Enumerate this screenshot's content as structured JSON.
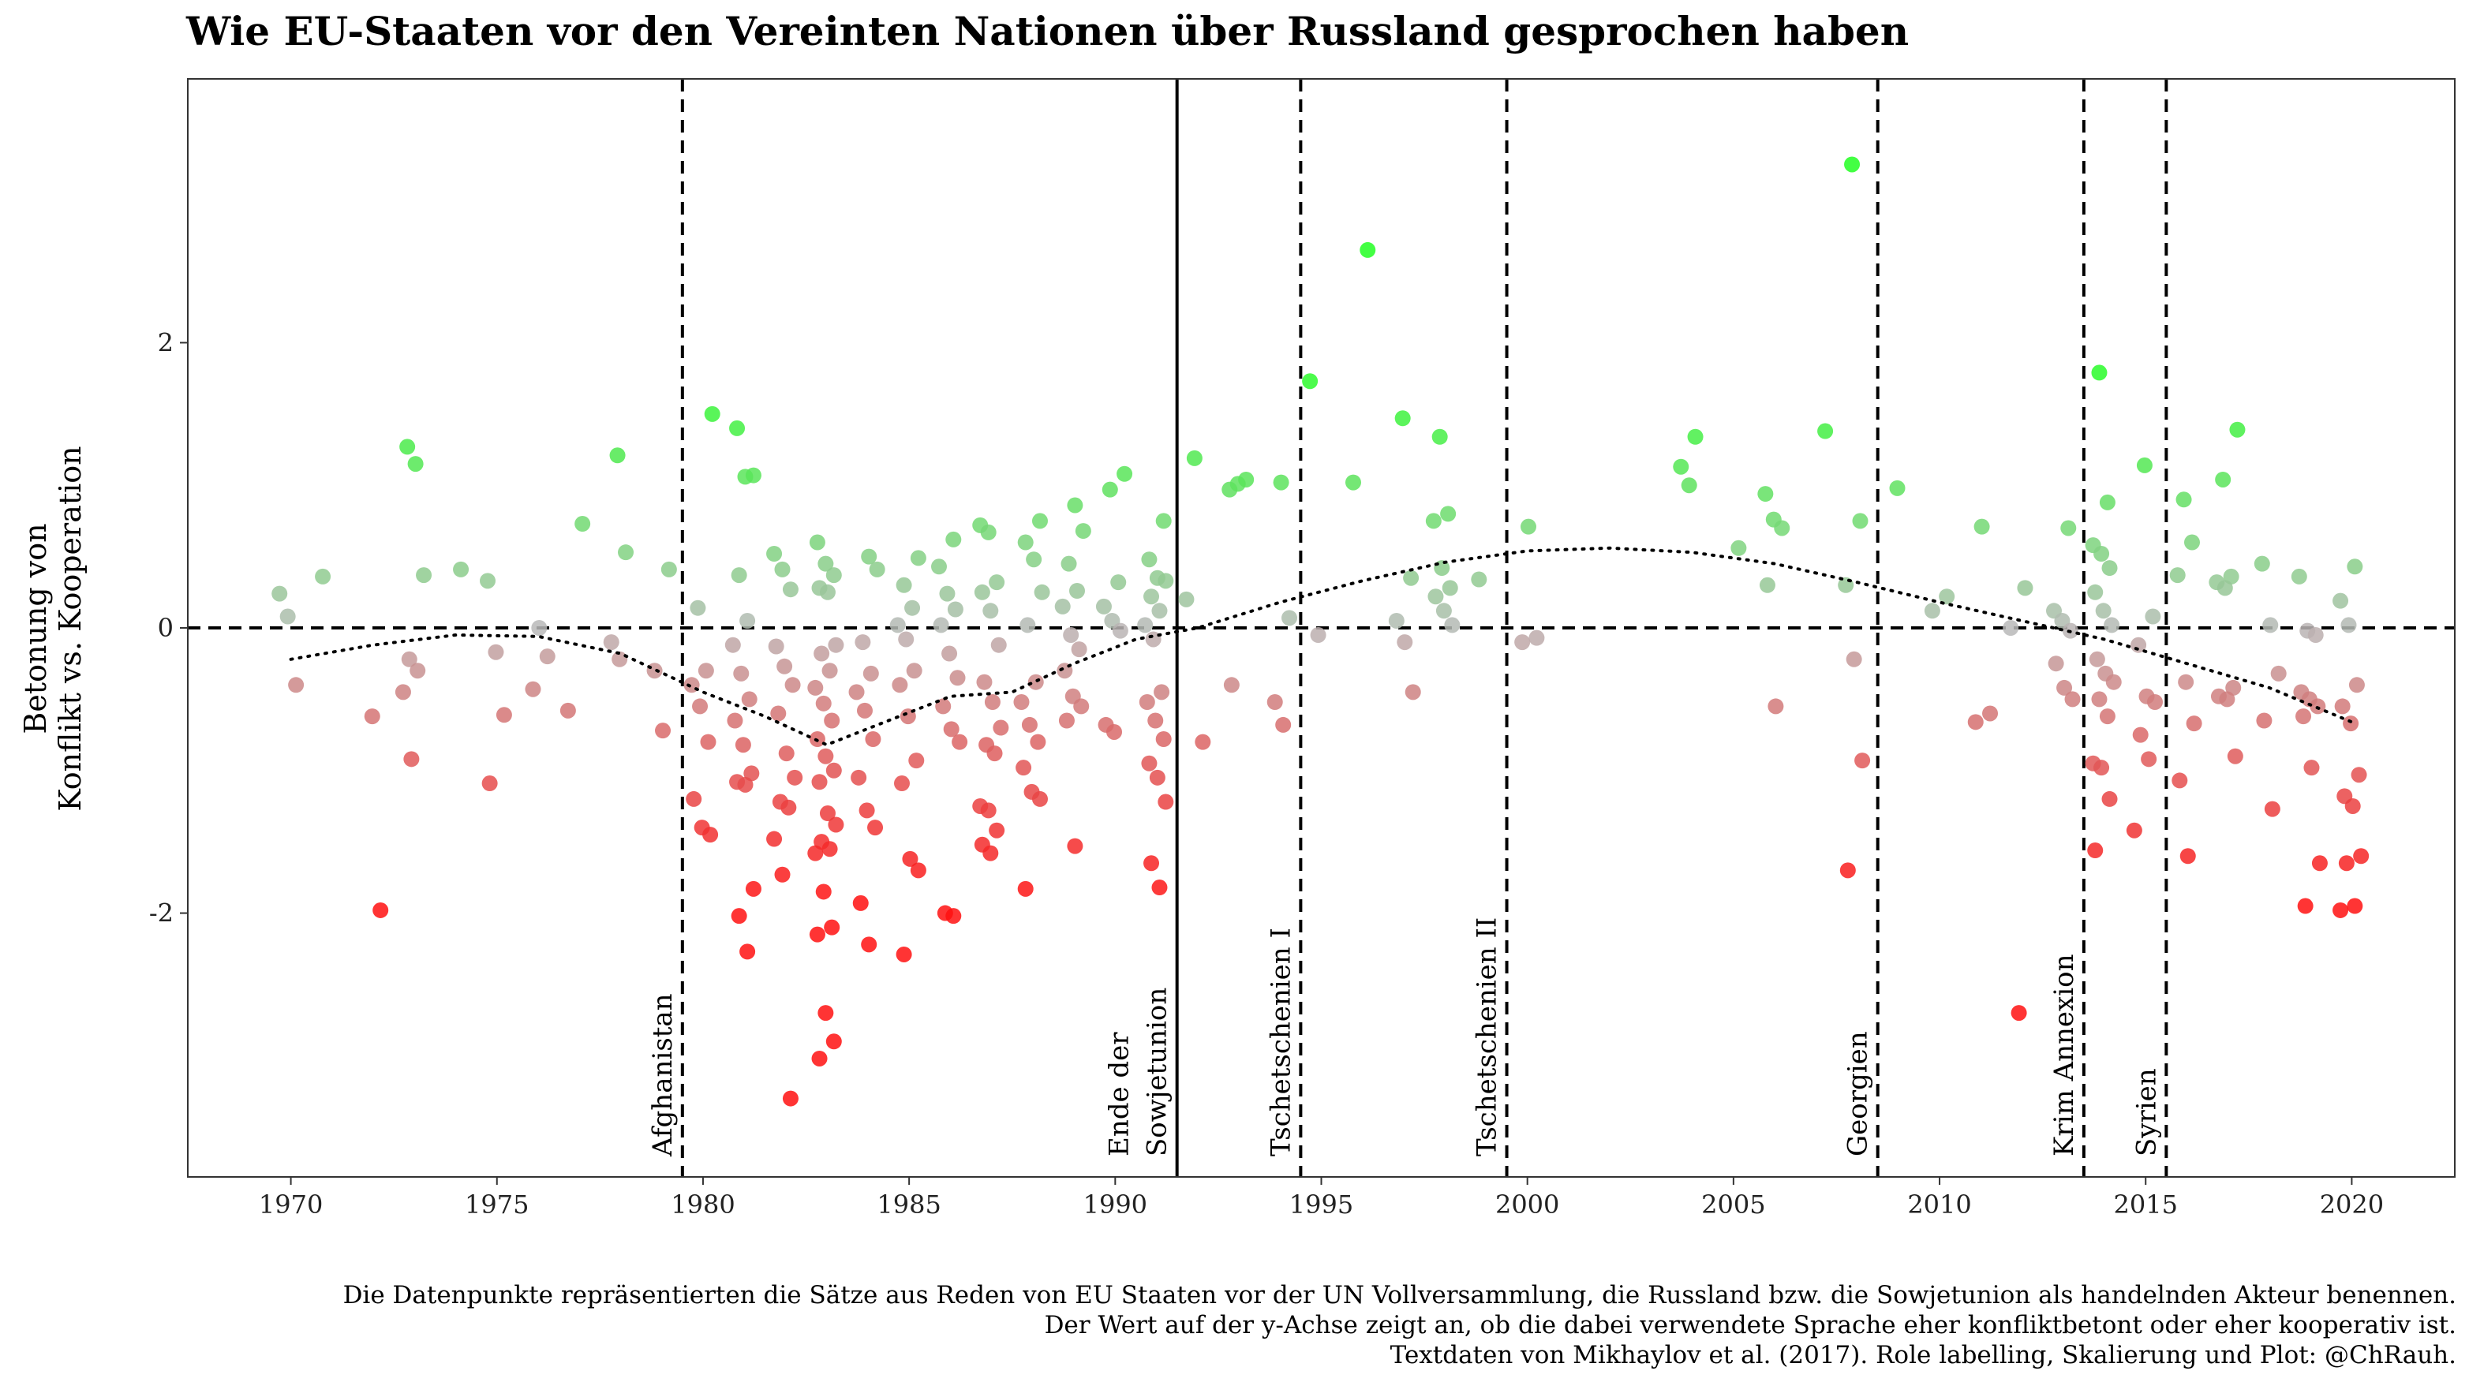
{
  "chart_data": {
    "type": "scatter",
    "title": "Wie EU-Staaten vor den Vereinten Nationen über Russland gesprochen haben",
    "ylabel_line1": "Betonung von",
    "ylabel_line2": "Konflikt vs. Kooperation",
    "xlim": [
      1967.5,
      2022.5
    ],
    "ylim": [
      -3.85,
      3.85
    ],
    "x_ticks": [
      1970,
      1975,
      1980,
      1985,
      1990,
      1995,
      2000,
      2005,
      2010,
      2015,
      2020
    ],
    "y_ticks": [
      2,
      0,
      -2
    ],
    "y_tick_labels": [
      "2",
      "0",
      "-2"
    ],
    "grid": false,
    "color_scale": {
      "high": "#22ff22",
      "mid": "#b8b8b8",
      "low": "#ff1111"
    },
    "reference_lines": [
      {
        "x": 1979.5,
        "label": "Afghanistan",
        "style": "dashed"
      },
      {
        "x": 1991.5,
        "label": "Ende der Sowjetunion",
        "style": "solid"
      },
      {
        "x": 1994.5,
        "label": "Tschetschenien I",
        "style": "dashed"
      },
      {
        "x": 1999.5,
        "label": "Tschetschenien II",
        "style": "dashed"
      },
      {
        "x": 2008.5,
        "label": "Georgien",
        "style": "dashed"
      },
      {
        "x": 2013.5,
        "label": "Krim Annexion",
        "style": "dashed"
      },
      {
        "x": 2015.5,
        "label": "Syrien",
        "style": "dashed"
      }
    ],
    "trend": [
      [
        1970,
        -0.22
      ],
      [
        1972,
        -0.12
      ],
      [
        1974,
        -0.05
      ],
      [
        1976,
        -0.06
      ],
      [
        1978,
        -0.18
      ],
      [
        1980,
        -0.45
      ],
      [
        1981.5,
        -0.62
      ],
      [
        1983,
        -0.82
      ],
      [
        1984.5,
        -0.65
      ],
      [
        1986,
        -0.48
      ],
      [
        1987.5,
        -0.45
      ],
      [
        1989,
        -0.25
      ],
      [
        1990.5,
        -0.08
      ],
      [
        1992,
        0.0
      ],
      [
        1994,
        0.18
      ],
      [
        1996,
        0.33
      ],
      [
        1998,
        0.46
      ],
      [
        2000,
        0.54
      ],
      [
        2002,
        0.56
      ],
      [
        2004,
        0.53
      ],
      [
        2006,
        0.45
      ],
      [
        2008,
        0.32
      ],
      [
        2010,
        0.18
      ],
      [
        2012,
        0.05
      ],
      [
        2014,
        -0.08
      ],
      [
        2016,
        -0.25
      ],
      [
        2018,
        -0.42
      ],
      [
        2020,
        -0.66
      ]
    ],
    "points": [
      [
        1970,
        0.24
      ],
      [
        1970,
        0.08
      ],
      [
        1970,
        -0.4
      ],
      [
        1971,
        0.36
      ],
      [
        1972,
        -0.62
      ],
      [
        1972,
        -1.98
      ],
      [
        1973,
        1.27
      ],
      [
        1973,
        1.15
      ],
      [
        1973,
        0.37
      ],
      [
        1973,
        -0.22
      ],
      [
        1973,
        -0.3
      ],
      [
        1973,
        -0.45
      ],
      [
        1973,
        -0.92
      ],
      [
        1974,
        0.41
      ],
      [
        1975,
        0.33
      ],
      [
        1975,
        -0.17
      ],
      [
        1975,
        -0.61
      ],
      [
        1975,
        -1.09
      ],
      [
        1976,
        0.0
      ],
      [
        1976,
        -0.2
      ],
      [
        1976,
        -0.43
      ],
      [
        1977,
        0.73
      ],
      [
        1977,
        -0.58
      ],
      [
        1978,
        1.21
      ],
      [
        1978,
        0.53
      ],
      [
        1978,
        -0.1
      ],
      [
        1978,
        -0.22
      ],
      [
        1979,
        0.41
      ],
      [
        1979,
        -0.3
      ],
      [
        1979,
        -0.72
      ],
      [
        1980,
        1.5
      ],
      [
        1980,
        0.14
      ],
      [
        1980,
        -0.3
      ],
      [
        1980,
        -0.4
      ],
      [
        1980,
        -0.55
      ],
      [
        1980,
        -0.8
      ],
      [
        1980,
        -1.2
      ],
      [
        1980,
        -1.4
      ],
      [
        1980,
        -1.45
      ],
      [
        1981,
        1.4
      ],
      [
        1981,
        1.06
      ],
      [
        1981,
        1.07
      ],
      [
        1981,
        0.37
      ],
      [
        1981,
        0.05
      ],
      [
        1981,
        -0.12
      ],
      [
        1981,
        -0.32
      ],
      [
        1981,
        -0.5
      ],
      [
        1981,
        -0.65
      ],
      [
        1981,
        -0.82
      ],
      [
        1981,
        -1.02
      ],
      [
        1981,
        -1.08
      ],
      [
        1981,
        -1.1
      ],
      [
        1981,
        -1.83
      ],
      [
        1981,
        -2.02
      ],
      [
        1981,
        -2.27
      ],
      [
        1982,
        0.52
      ],
      [
        1982,
        0.41
      ],
      [
        1982,
        0.27
      ],
      [
        1982,
        -0.13
      ],
      [
        1982,
        -0.27
      ],
      [
        1982,
        -0.4
      ],
      [
        1982,
        -0.6
      ],
      [
        1982,
        -0.88
      ],
      [
        1982,
        -1.05
      ],
      [
        1982,
        -1.22
      ],
      [
        1982,
        -1.26
      ],
      [
        1982,
        -1.48
      ],
      [
        1982,
        -1.73
      ],
      [
        1982,
        -3.3
      ],
      [
        1983,
        0.6
      ],
      [
        1983,
        0.45
      ],
      [
        1983,
        0.37
      ],
      [
        1983,
        0.28
      ],
      [
        1983,
        0.25
      ],
      [
        1983,
        -0.12
      ],
      [
        1983,
        -0.18
      ],
      [
        1983,
        -0.3
      ],
      [
        1983,
        -0.42
      ],
      [
        1983,
        -0.53
      ],
      [
        1983,
        -0.65
      ],
      [
        1983,
        -0.78
      ],
      [
        1983,
        -0.9
      ],
      [
        1983,
        -1.0
      ],
      [
        1983,
        -1.08
      ],
      [
        1983,
        -1.3
      ],
      [
        1983,
        -1.38
      ],
      [
        1983,
        -1.5
      ],
      [
        1983,
        -1.55
      ],
      [
        1983,
        -1.58
      ],
      [
        1983,
        -1.85
      ],
      [
        1983,
        -2.1
      ],
      [
        1983,
        -2.15
      ],
      [
        1983,
        -2.7
      ],
      [
        1983,
        -2.9
      ],
      [
        1983,
        -3.02
      ],
      [
        1984,
        0.5
      ],
      [
        1984,
        0.41
      ],
      [
        1984,
        -0.1
      ],
      [
        1984,
        -0.32
      ],
      [
        1984,
        -0.45
      ],
      [
        1984,
        -0.58
      ],
      [
        1984,
        -0.78
      ],
      [
        1984,
        -1.05
      ],
      [
        1984,
        -1.28
      ],
      [
        1984,
        -1.4
      ],
      [
        1984,
        -1.93
      ],
      [
        1984,
        -2.22
      ],
      [
        1985,
        0.49
      ],
      [
        1985,
        0.3
      ],
      [
        1985,
        0.14
      ],
      [
        1985,
        0.02
      ],
      [
        1985,
        -0.08
      ],
      [
        1985,
        -0.3
      ],
      [
        1985,
        -0.4
      ],
      [
        1985,
        -0.62
      ],
      [
        1985,
        -0.93
      ],
      [
        1985,
        -1.09
      ],
      [
        1985,
        -1.62
      ],
      [
        1985,
        -1.7
      ],
      [
        1985,
        -2.29
      ],
      [
        1986,
        0.62
      ],
      [
        1986,
        0.43
      ],
      [
        1986,
        0.24
      ],
      [
        1986,
        0.13
      ],
      [
        1986,
        0.02
      ],
      [
        1986,
        -0.18
      ],
      [
        1986,
        -0.35
      ],
      [
        1986,
        -0.55
      ],
      [
        1986,
        -0.71
      ],
      [
        1986,
        -0.8
      ],
      [
        1986,
        -2.0
      ],
      [
        1986,
        -2.02
      ],
      [
        1987,
        0.72
      ],
      [
        1987,
        0.67
      ],
      [
        1987,
        0.32
      ],
      [
        1987,
        0.25
      ],
      [
        1987,
        0.12
      ],
      [
        1987,
        -0.12
      ],
      [
        1987,
        -0.38
      ],
      [
        1987,
        -0.52
      ],
      [
        1987,
        -0.7
      ],
      [
        1987,
        -0.82
      ],
      [
        1987,
        -0.88
      ],
      [
        1987,
        -1.25
      ],
      [
        1987,
        -1.28
      ],
      [
        1987,
        -1.42
      ],
      [
        1987,
        -1.52
      ],
      [
        1987,
        -1.58
      ],
      [
        1988,
        0.75
      ],
      [
        1988,
        0.6
      ],
      [
        1988,
        0.48
      ],
      [
        1988,
        0.25
      ],
      [
        1988,
        0.02
      ],
      [
        1988,
        -0.38
      ],
      [
        1988,
        -0.52
      ],
      [
        1988,
        -0.68
      ],
      [
        1988,
        -0.8
      ],
      [
        1988,
        -0.98
      ],
      [
        1988,
        -1.15
      ],
      [
        1988,
        -1.2
      ],
      [
        1988,
        -1.83
      ],
      [
        1989,
        0.86
      ],
      [
        1989,
        0.68
      ],
      [
        1989,
        0.45
      ],
      [
        1989,
        0.26
      ],
      [
        1989,
        0.15
      ],
      [
        1989,
        -0.05
      ],
      [
        1989,
        -0.15
      ],
      [
        1989,
        -0.3
      ],
      [
        1989,
        -0.48
      ],
      [
        1989,
        -0.55
      ],
      [
        1989,
        -0.65
      ],
      [
        1989,
        -1.53
      ],
      [
        1990,
        1.08
      ],
      [
        1990,
        0.97
      ],
      [
        1990,
        0.32
      ],
      [
        1990,
        0.15
      ],
      [
        1990,
        0.05
      ],
      [
        1990,
        -0.02
      ],
      [
        1990,
        -0.68
      ],
      [
        1990,
        -0.73
      ],
      [
        1991,
        0.75
      ],
      [
        1991,
        0.48
      ],
      [
        1991,
        0.35
      ],
      [
        1991,
        0.33
      ],
      [
        1991,
        0.22
      ],
      [
        1991,
        0.12
      ],
      [
        1991,
        0.02
      ],
      [
        1991,
        -0.08
      ],
      [
        1991,
        -0.45
      ],
      [
        1991,
        -0.52
      ],
      [
        1991,
        -0.65
      ],
      [
        1991,
        -0.78
      ],
      [
        1991,
        -0.95
      ],
      [
        1991,
        -1.05
      ],
      [
        1991,
        -1.22
      ],
      [
        1991,
        -1.65
      ],
      [
        1991,
        -1.82
      ],
      [
        1992,
        0.2
      ],
      [
        1992,
        1.19
      ],
      [
        1992,
        -0.8
      ],
      [
        1993,
        0.97
      ],
      [
        1993,
        1.01
      ],
      [
        1993,
        1.04
      ],
      [
        1993,
        -0.4
      ],
      [
        1994,
        1.02
      ],
      [
        1994,
        0.07
      ],
      [
        1994,
        -0.52
      ],
      [
        1994,
        -0.68
      ],
      [
        1995,
        1.73
      ],
      [
        1995,
        -0.05
      ],
      [
        1996,
        2.65
      ],
      [
        1996,
        1.02
      ],
      [
        1997,
        1.47
      ],
      [
        1997,
        0.35
      ],
      [
        1997,
        0.05
      ],
      [
        1997,
        -0.1
      ],
      [
        1997,
        -0.45
      ],
      [
        1998,
        1.34
      ],
      [
        1998,
        0.8
      ],
      [
        1998,
        0.75
      ],
      [
        1998,
        0.42
      ],
      [
        1998,
        0.28
      ],
      [
        1998,
        0.22
      ],
      [
        1998,
        0.12
      ],
      [
        1998,
        0.02
      ],
      [
        1999,
        0.34
      ],
      [
        2000,
        0.71
      ],
      [
        2000,
        -0.07
      ],
      [
        2000,
        -0.1
      ],
      [
        2004,
        1.34
      ],
      [
        2004,
        1.13
      ],
      [
        2004,
        1.0
      ],
      [
        2005,
        0.56
      ],
      [
        2006,
        0.94
      ],
      [
        2006,
        0.76
      ],
      [
        2006,
        0.7
      ],
      [
        2006,
        0.3
      ],
      [
        2006,
        -0.55
      ],
      [
        2007,
        1.38
      ],
      [
        2008,
        3.25
      ],
      [
        2008,
        0.75
      ],
      [
        2008,
        0.3
      ],
      [
        2008,
        -0.22
      ],
      [
        2008,
        -0.93
      ],
      [
        2008,
        -1.7
      ],
      [
        2009,
        0.98
      ],
      [
        2010,
        0.22
      ],
      [
        2010,
        0.12
      ],
      [
        2011,
        0.71
      ],
      [
        2011,
        -0.6
      ],
      [
        2011,
        -0.66
      ],
      [
        2012,
        0.28
      ],
      [
        2012,
        0.0
      ],
      [
        2012,
        -2.7
      ],
      [
        2013,
        0.7
      ],
      [
        2013,
        0.12
      ],
      [
        2013,
        0.05
      ],
      [
        2013,
        -0.02
      ],
      [
        2013,
        -0.25
      ],
      [
        2013,
        -0.42
      ],
      [
        2013,
        -0.5
      ],
      [
        2014,
        1.79
      ],
      [
        2014,
        0.88
      ],
      [
        2014,
        0.58
      ],
      [
        2014,
        0.52
      ],
      [
        2014,
        0.42
      ],
      [
        2014,
        0.25
      ],
      [
        2014,
        0.12
      ],
      [
        2014,
        0.02
      ],
      [
        2014,
        -0.22
      ],
      [
        2014,
        -0.32
      ],
      [
        2014,
        -0.38
      ],
      [
        2014,
        -0.5
      ],
      [
        2014,
        -0.62
      ],
      [
        2014,
        -0.95
      ],
      [
        2014,
        -0.98
      ],
      [
        2014,
        -1.2
      ],
      [
        2014,
        -1.56
      ],
      [
        2015,
        1.14
      ],
      [
        2015,
        0.08
      ],
      [
        2015,
        -0.12
      ],
      [
        2015,
        -0.48
      ],
      [
        2015,
        -0.52
      ],
      [
        2015,
        -0.75
      ],
      [
        2015,
        -0.92
      ],
      [
        2015,
        -1.42
      ],
      [
        2016,
        0.9
      ],
      [
        2016,
        0.6
      ],
      [
        2016,
        0.37
      ],
      [
        2016,
        -0.38
      ],
      [
        2016,
        -0.67
      ],
      [
        2016,
        -1.07
      ],
      [
        2016,
        -1.6
      ],
      [
        2017,
        1.39
      ],
      [
        2017,
        1.04
      ],
      [
        2017,
        0.36
      ],
      [
        2017,
        0.32
      ],
      [
        2017,
        0.28
      ],
      [
        2017,
        -0.42
      ],
      [
        2017,
        -0.48
      ],
      [
        2017,
        -0.5
      ],
      [
        2017,
        -0.9
      ],
      [
        2018,
        0.45
      ],
      [
        2018,
        0.02
      ],
      [
        2018,
        -0.32
      ],
      [
        2018,
        -0.65
      ],
      [
        2018,
        -1.27
      ],
      [
        2019,
        0.36
      ],
      [
        2019,
        -0.02
      ],
      [
        2019,
        -0.05
      ],
      [
        2019,
        -0.45
      ],
      [
        2019,
        -0.5
      ],
      [
        2019,
        -0.55
      ],
      [
        2019,
        -0.62
      ],
      [
        2019,
        -0.98
      ],
      [
        2019,
        -1.65
      ],
      [
        2019,
        -1.95
      ],
      [
        2020,
        0.43
      ],
      [
        2020,
        0.19
      ],
      [
        2020,
        0.02
      ],
      [
        2020,
        -0.4
      ],
      [
        2020,
        -0.55
      ],
      [
        2020,
        -0.67
      ],
      [
        2020,
        -1.03
      ],
      [
        2020,
        -1.18
      ],
      [
        2020,
        -1.25
      ],
      [
        2020,
        -1.6
      ],
      [
        2020,
        -1.65
      ],
      [
        2020,
        -1.95
      ],
      [
        2020,
        -1.98
      ]
    ]
  },
  "caption": {
    "line1": "Die Datenpunkte repräsentierten die Sätze aus Reden von EU Staaten vor der UN Vollversammlung, die Russland bzw. die Sowjetunion als handelnden Akteur benennen.",
    "line2": "Der Wert auf der y-Achse zeigt an, ob die dabei verwendete Sprache eher konfliktbetont oder eher kooperativ ist.",
    "line3": "Textdaten von Mikhaylov et al. (2017). Role labelling, Skalierung und Plot: @ChRauh."
  }
}
